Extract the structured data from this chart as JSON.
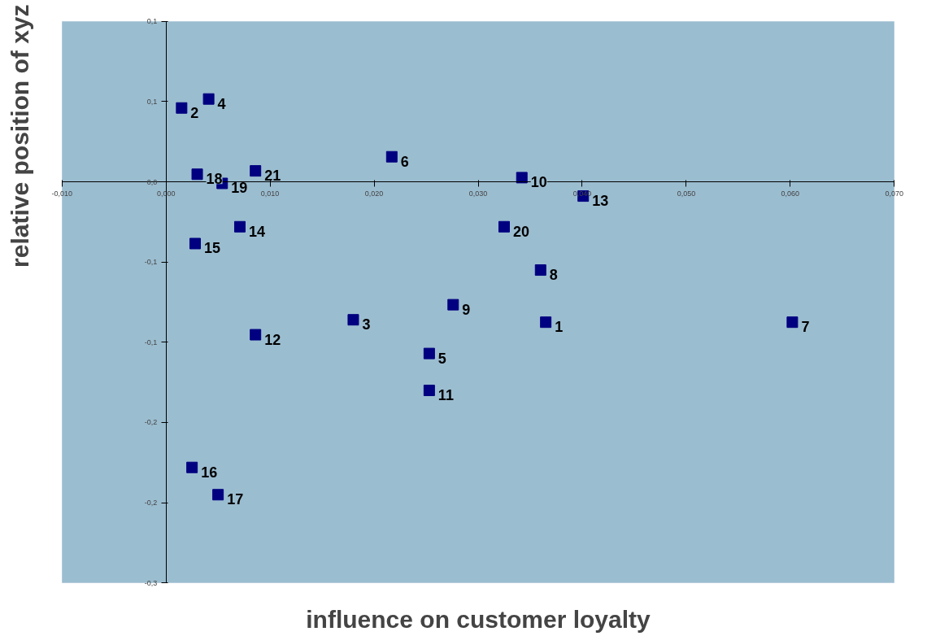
{
  "chart_data": {
    "type": "scatter",
    "xlabel": "influence on customer loyalty",
    "ylabel": "relative position of xyz",
    "x": [
      0.0365,
      0.0015,
      0.018,
      0.0041,
      0.0253,
      0.0217,
      0.0602,
      0.036,
      0.0276,
      0.0342,
      0.0253,
      0.0086,
      0.0401,
      0.0071,
      0.0028,
      0.0025,
      0.005,
      0.003,
      0.0054,
      0.0325,
      0.0086
    ],
    "series": [
      {
        "color": "#000080",
        "values": [
          -0.0875,
          0.046,
          -0.086,
          0.0516,
          -0.107,
          0.0156,
          -0.0875,
          -0.055,
          -0.0766,
          0.0026,
          -0.13,
          -0.0953,
          -0.0089,
          -0.028,
          -0.0385,
          -0.178,
          -0.195,
          0.0047,
          -0.001,
          -0.028,
          0.0068
        ]
      }
    ],
    "annotations": [
      {
        "text": "1",
        "x": 0.0365,
        "y": -0.0875
      },
      {
        "text": "2",
        "x": 0.0015,
        "y": 0.046
      },
      {
        "text": "3",
        "x": 0.018,
        "y": -0.086
      },
      {
        "text": "4",
        "x": 0.0041,
        "y": 0.0516
      },
      {
        "text": "5",
        "x": 0.0253,
        "y": -0.107
      },
      {
        "text": "6",
        "x": 0.0217,
        "y": 0.0156
      },
      {
        "text": "7",
        "x": 0.0602,
        "y": -0.0875
      },
      {
        "text": "8",
        "x": 0.036,
        "y": -0.055
      },
      {
        "text": "9",
        "x": 0.0276,
        "y": -0.0766
      },
      {
        "text": "10",
        "x": 0.0342,
        "y": 0.0026
      },
      {
        "text": "11",
        "x": 0.0253,
        "y": -0.13
      },
      {
        "text": "12",
        "x": 0.0086,
        "y": -0.0953
      },
      {
        "text": "13",
        "x": 0.0401,
        "y": -0.0089
      },
      {
        "text": "14",
        "x": 0.0071,
        "y": -0.028
      },
      {
        "text": "15",
        "x": 0.0028,
        "y": -0.0385
      },
      {
        "text": "16",
        "x": 0.0025,
        "y": -0.178
      },
      {
        "text": "17",
        "x": 0.005,
        "y": -0.195
      },
      {
        "text": "18",
        "x": 0.003,
        "y": 0.0047
      },
      {
        "text": "19",
        "x": 0.0054,
        "y": -0.001
      },
      {
        "text": "20",
        "x": 0.0325,
        "y": -0.028
      },
      {
        "text": "21",
        "x": 0.0086,
        "y": 0.0068
      }
    ],
    "marker": "square",
    "xlim": [
      -0.01,
      0.07
    ],
    "xticks": [
      {
        "value": -0.01,
        "label": "-0,010"
      },
      {
        "value": 0,
        "label": "0,000"
      },
      {
        "value": 0.01,
        "label": "0,010"
      },
      {
        "value": 0.02,
        "label": "0,020"
      },
      {
        "value": 0.03,
        "label": "0,030"
      },
      {
        "value": 0.04,
        "label": "0,040"
      },
      {
        "value": 0.05,
        "label": "0,050"
      },
      {
        "value": 0.06,
        "label": "0,060"
      },
      {
        "value": 0.07,
        "label": "0,070"
      }
    ],
    "ylim": [
      -0.25,
      0.1
    ],
    "yticks": [
      {
        "value": 0.1,
        "label": "0,1"
      },
      {
        "value": 0.05,
        "label": "0,1"
      },
      {
        "value": 0,
        "label": "0,0"
      },
      {
        "value": -0.05,
        "label": "-0,1"
      },
      {
        "value": -0.1,
        "label": "-0,1"
      },
      {
        "value": -0.15,
        "label": "-0,2"
      },
      {
        "value": -0.2,
        "label": "-0,2"
      },
      {
        "value": -0.25,
        "label": "-0,3"
      }
    ],
    "grid": false
  }
}
